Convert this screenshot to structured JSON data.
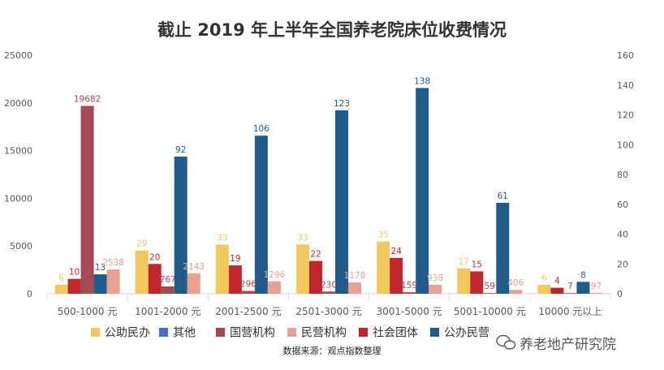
{
  "chart_data": {
    "type": "bar",
    "title": "截止 2019 年上半年全国养老院床位收费情况",
    "categories": [
      "500-1000 元",
      "1001-2000 元",
      "2001-2500 元",
      "2501-3000 元",
      "3001-5000 元",
      "5001-10000 元",
      "10000 元以上"
    ],
    "y_left": {
      "ticks": [
        "0",
        "5000",
        "10000",
        "15000",
        "20000",
        "25000"
      ],
      "ylim": [
        0,
        25000
      ]
    },
    "y_right": {
      "ticks": [
        "0",
        "20",
        "40",
        "60",
        "80",
        "100",
        "120",
        "140",
        "160"
      ],
      "ylim": [
        0,
        160
      ]
    },
    "series": [
      {
        "name": "公助民办",
        "color": "#f2c75c",
        "label_color": "#f2c75c",
        "axis": "right",
        "values": [
          6,
          29,
          33,
          33,
          35,
          17,
          6
        ],
        "labels": [
          "6",
          "29",
          "33",
          "33",
          "35",
          "17",
          "6"
        ]
      },
      {
        "name": "社会团体",
        "color": "#c0272d",
        "label_color": "#c0272d",
        "axis": "right",
        "values": [
          10,
          20,
          19,
          22,
          24,
          15,
          4
        ],
        "labels": [
          "10",
          "20",
          "19",
          "22",
          "24",
          "15",
          "4"
        ]
      },
      {
        "name": "国营机构",
        "color": "#a34a52",
        "label_color": "#a34a52",
        "axis": "left",
        "values": [
          19682,
          767,
          296,
          230,
          159,
          59,
          7
        ],
        "labels": [
          "19682",
          "767",
          "296",
          "230",
          "159",
          "59",
          "7"
        ]
      },
      {
        "name": "公办民营",
        "color": "#1f5c8b",
        "label_color": "#1f5c8b",
        "axis": "right",
        "values": [
          13,
          92,
          106,
          123,
          138,
          61,
          8
        ],
        "labels": [
          "13",
          "92",
          "106",
          "123",
          "138",
          "61",
          "8"
        ]
      },
      {
        "name": "民营机构",
        "color": "#e8a093",
        "label_color": "#e8a093",
        "axis": "left",
        "values": [
          2538,
          2143,
          1296,
          1178,
          938,
          406,
          97
        ],
        "labels": [
          "2538",
          "2143",
          "1296",
          "1178",
          "938",
          "406",
          "97"
        ]
      }
    ],
    "legend": [
      {
        "name": "公助民办",
        "color": "#f2c75c"
      },
      {
        "name": "其他",
        "color": "#4472c4"
      },
      {
        "name": "国营机构",
        "color": "#a34a52"
      },
      {
        "name": "民营机构",
        "color": "#e8a093"
      },
      {
        "name": "社会团体",
        "color": "#c0272d"
      },
      {
        "name": "公办民营",
        "color": "#1f5c8b"
      }
    ],
    "legend_position": "bottom",
    "source": "数据来源：观点指数整理"
  },
  "watermark": {
    "text": "养老地产研究院",
    "icon": "wechat-icon"
  }
}
